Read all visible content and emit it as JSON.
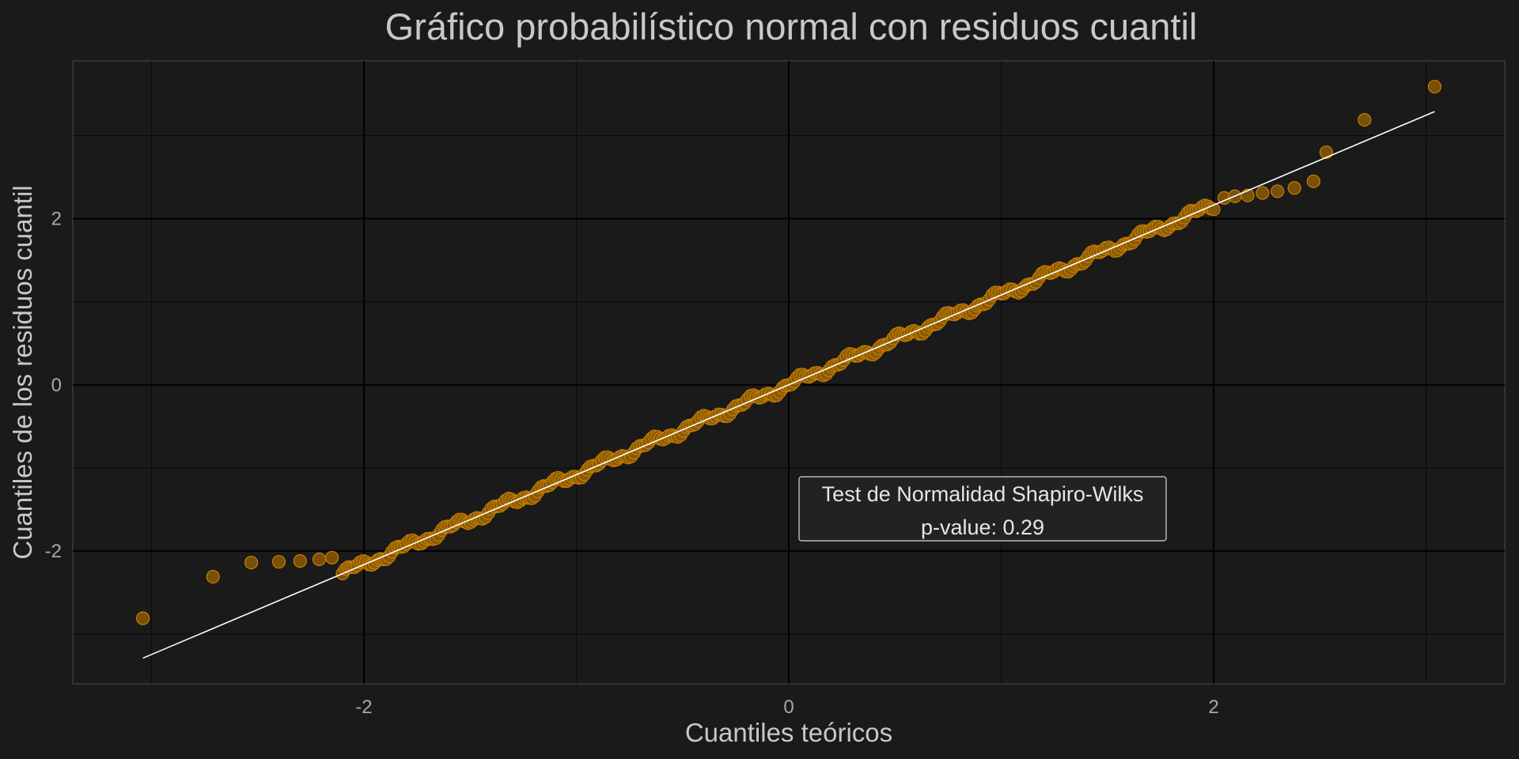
{
  "chart_data": {
    "type": "scatter",
    "title": "Gráfico probabilístico normal con residuos cuantil",
    "xlabel": "Cuantiles teóricos",
    "ylabel": "Cuantiles de los residuos cuantil",
    "xlim": [
      -3.37,
      3.37
    ],
    "ylim": [
      -3.6,
      3.9
    ],
    "x_ticks": [
      -2,
      0,
      2
    ],
    "y_ticks": [
      -2,
      0,
      2
    ],
    "x_tick_labels": [
      "-2",
      "0",
      "2"
    ],
    "y_tick_labels": [
      "-2",
      "0",
      "2"
    ],
    "grid": true,
    "point_color": "#8a5a06",
    "point_stroke": "#c77d00",
    "line_color": "#ffffff",
    "background": "#1a1a1a",
    "reference_line": {
      "x": [
        -3.04,
        3.04
      ],
      "y": [
        -3.29,
        3.29
      ]
    },
    "n_bulk_points": 300,
    "bulk_range": [
      -2.1,
      2.0
    ],
    "bulk_slope": 1.081,
    "tail_points": [
      {
        "x": -3.04,
        "y": -2.81
      },
      {
        "x": -2.71,
        "y": -2.31
      },
      {
        "x": -2.53,
        "y": -2.14
      },
      {
        "x": -2.4,
        "y": -2.13
      },
      {
        "x": -2.3,
        "y": -2.12
      },
      {
        "x": -2.21,
        "y": -2.1
      },
      {
        "x": -2.15,
        "y": -2.08
      },
      {
        "x": 2.05,
        "y": 2.25
      },
      {
        "x": 2.1,
        "y": 2.27
      },
      {
        "x": 2.16,
        "y": 2.28
      },
      {
        "x": 2.23,
        "y": 2.31
      },
      {
        "x": 2.3,
        "y": 2.33
      },
      {
        "x": 2.38,
        "y": 2.37
      },
      {
        "x": 2.47,
        "y": 2.45
      },
      {
        "x": 2.53,
        "y": 2.8
      },
      {
        "x": 2.71,
        "y": 3.19
      },
      {
        "x": 3.04,
        "y": 3.59
      }
    ],
    "annotation": {
      "line1": "Test de Normalidad Shapiro-Wilks",
      "line2": "p-value: 0.29"
    }
  }
}
